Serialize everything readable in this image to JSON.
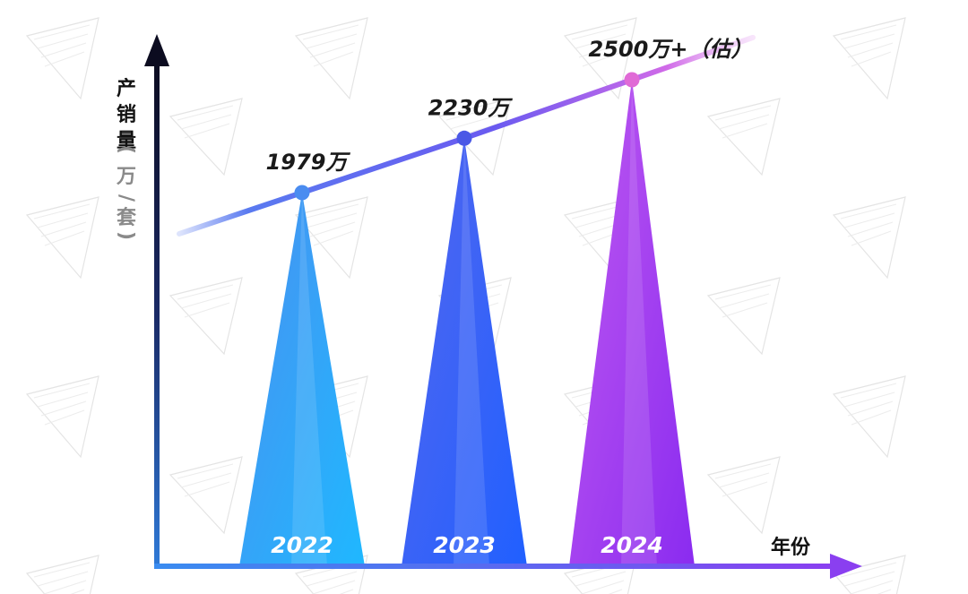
{
  "chart_data": {
    "type": "bar",
    "categories": [
      "2022",
      "2023",
      "2024"
    ],
    "values": [
      1979,
      2230,
      2500
    ],
    "value_labels": [
      "1979万",
      "2230万",
      "2500万+（估）"
    ],
    "xlabel": "年份",
    "ylabel": "产销量",
    "ylabel_unit": [
      "(",
      "万",
      "/",
      "套",
      ")"
    ],
    "grid": true,
    "trend_line": true,
    "colors": {
      "bar_2022": [
        "#1fb8ff",
        "#4a90f0"
      ],
      "bar_2023": [
        "#2255ff",
        "#5566ee"
      ],
      "bar_2024": [
        "#8a2bf0",
        "#c05af0"
      ],
      "trend_start": "#5a7af0",
      "trend_end": "#d06ae8",
      "axis_start": "#1a2a66",
      "axis_end": "#8a4ff0",
      "grid": "#c8c8c8"
    }
  }
}
